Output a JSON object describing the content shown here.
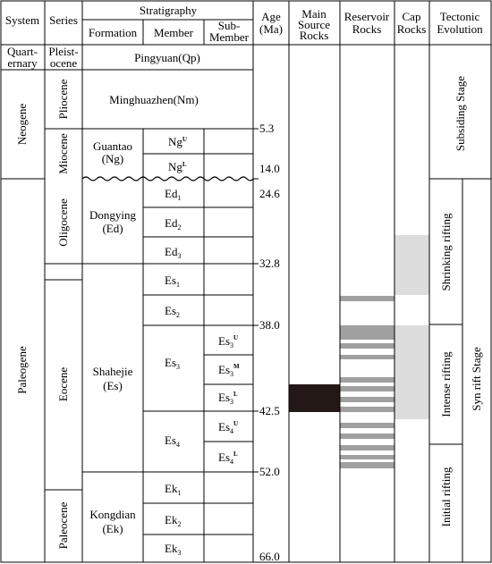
{
  "headers": {
    "system": "System",
    "series": "Series",
    "stratigraphy": "Stratigraphy",
    "formation": "Formation",
    "member": "Member",
    "submember": [
      "Sub-",
      "Member"
    ],
    "age": [
      "Age",
      "(Ma)"
    ],
    "source": [
      "Main",
      "Source",
      "Rocks"
    ],
    "reservoir": [
      "Reservoir",
      "Rocks"
    ],
    "cap": [
      "Cap",
      "Rocks"
    ],
    "tectonic": [
      "Tectonic",
      "Evolution"
    ]
  },
  "systems": [
    {
      "label": [
        "Quart-",
        "ernary"
      ]
    },
    {
      "label": "Neogene"
    },
    {
      "label": "Paleogene"
    }
  ],
  "series": [
    {
      "label": [
        "Pleist-",
        "ocene"
      ]
    },
    {
      "label": "Pliocene"
    },
    {
      "label": "Miocene"
    },
    {
      "label": "Oligocene"
    },
    {
      "label": "Eocene"
    },
    {
      "label": "Paleocene"
    }
  ],
  "formations": [
    {
      "label": "Pingyuan(Qp)"
    },
    {
      "label": "Minghuazhen(Nm)"
    },
    {
      "label": [
        "Guantao",
        "(Ng)"
      ]
    },
    {
      "label": [
        "Dongying",
        "(Ed)"
      ]
    },
    {
      "label": [
        "Shahejie",
        "(Es)"
      ]
    },
    {
      "label": [
        "Kongdian",
        "(Ek)"
      ]
    }
  ],
  "members": [
    {
      "base": "Ng",
      "sup": "U",
      "sub": ""
    },
    {
      "base": "Ng",
      "sup": "L",
      "sub": ""
    },
    {
      "base": "Ed",
      "sup": "",
      "sub": "1"
    },
    {
      "base": "Ed",
      "sup": "",
      "sub": "2"
    },
    {
      "base": "Ed",
      "sup": "",
      "sub": "3"
    },
    {
      "base": "Es",
      "sup": "",
      "sub": "1"
    },
    {
      "base": "Es",
      "sup": "",
      "sub": "2"
    },
    {
      "base": "Es",
      "sup": "",
      "sub": "3"
    },
    {
      "base": "Es",
      "sup": "",
      "sub": "4"
    },
    {
      "base": "Ek",
      "sup": "",
      "sub": "1"
    },
    {
      "base": "Ek",
      "sup": "",
      "sub": "2"
    },
    {
      "base": "Ek",
      "sup": "",
      "sub": "3"
    }
  ],
  "submembers": [
    {
      "base": "Es",
      "sub": "3",
      "sup": "U"
    },
    {
      "base": "Es",
      "sub": "3",
      "sup": "M"
    },
    {
      "base": "Es",
      "sub": "3",
      "sup": "L"
    },
    {
      "base": "Es",
      "sub": "4",
      "sup": "U"
    },
    {
      "base": "Es",
      "sub": "4",
      "sup": "L"
    }
  ],
  "ages": [
    "5.3",
    "14.0",
    "24.6",
    "32.8",
    "38.0",
    "42.5",
    "52.0",
    "66.0"
  ],
  "source_rocks": {
    "color": "#231815",
    "note": "black interval in lower Es3"
  },
  "reservoir_rocks": {
    "color": "#a0a0a0",
    "bands": 13
  },
  "cap_rocks": {
    "color": "#dcdcdc",
    "intervals": 2
  },
  "tectonic": {
    "stages": [
      {
        "label": "Subsiding Stage"
      },
      {
        "label": "Syn rift Stage"
      }
    ],
    "substages": [
      {
        "label": "Shrinking rifting"
      },
      {
        "label": "Intense rifting"
      },
      {
        "label": "Initial rifting"
      }
    ]
  },
  "unconformity": "wavy line at base of Neogene"
}
